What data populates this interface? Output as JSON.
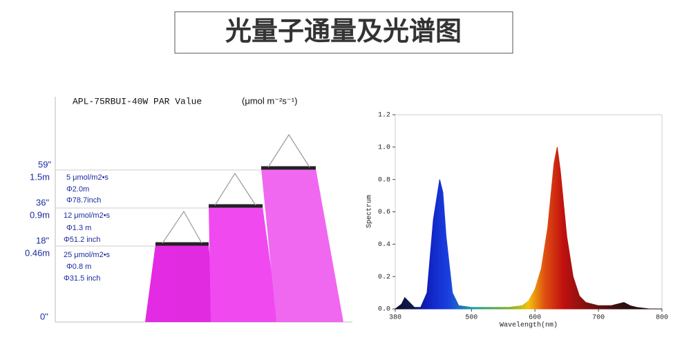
{
  "header": {
    "title": "光量子通量及光谱图"
  },
  "par_diagram": {
    "title": "APL-75RBUI-40W PAR Value",
    "unit": "(μmol m⁻²s⁻¹)",
    "heights": [
      {
        "inch": "59\"",
        "meter": "1.5m"
      },
      {
        "inch": "36\"",
        "meter": "0.9m"
      },
      {
        "inch": "18\"",
        "meter": "0.46m"
      }
    ],
    "ground": "0\"",
    "levels": [
      {
        "par": "5 μmol/m2•s",
        "diameter_m": "Φ2.0m",
        "diameter_inch": "Φ78.7inch"
      },
      {
        "par": "12 μmol/m2•s",
        "diameter_m": "Φ1.3 m",
        "diameter_inch": "Φ51.2 inch"
      },
      {
        "par": "25 μmol/m2•s",
        "diameter_m": "Φ0.8 m",
        "diameter_inch": "Φ31.5 inch"
      }
    ]
  },
  "chart_data": {
    "type": "area",
    "xlabel": "Wavelength(nm)",
    "ylabel": "Spectrum",
    "x": [
      380,
      390,
      395,
      400,
      410,
      420,
      430,
      440,
      450,
      455,
      460,
      470,
      480,
      500,
      540,
      560,
      580,
      590,
      600,
      610,
      620,
      630,
      635,
      640,
      650,
      660,
      670,
      680,
      700,
      720,
      730,
      740,
      750,
      760,
      780,
      800
    ],
    "values": [
      0,
      0.03,
      0.07,
      0.05,
      0.01,
      0.01,
      0.1,
      0.55,
      0.8,
      0.72,
      0.45,
      0.1,
      0.02,
      0.01,
      0.01,
      0.01,
      0.02,
      0.05,
      0.12,
      0.25,
      0.5,
      0.9,
      1.0,
      0.85,
      0.45,
      0.2,
      0.08,
      0.04,
      0.02,
      0.02,
      0.03,
      0.04,
      0.02,
      0.01,
      0,
      0
    ],
    "xlim": [
      380,
      800
    ],
    "ylim": [
      0,
      1.2
    ],
    "xticks": [
      380,
      500,
      600,
      700,
      800
    ],
    "yticks": [
      {
        "value": 0,
        "label": "0.0"
      },
      0.2,
      0.4,
      0.6,
      0.8,
      {
        "value": 1,
        "label": "1.0"
      },
      1.2
    ]
  }
}
